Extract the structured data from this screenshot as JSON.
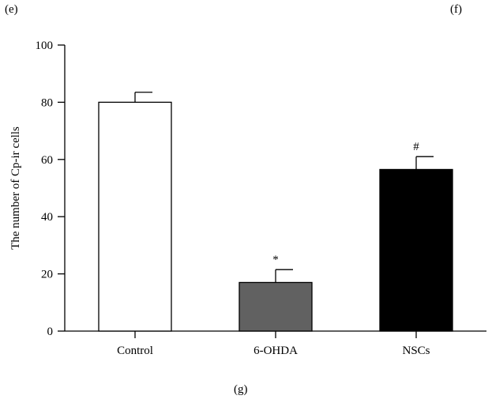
{
  "panels": {
    "left": "(e)",
    "right": "(f)",
    "caption": "(g)"
  },
  "colors": {
    "axis": "#000000",
    "bar_edge": "#000000"
  },
  "chart_data": {
    "type": "bar",
    "title": "",
    "xlabel": "",
    "ylabel": "The number of Cp-ir cells",
    "ylim": [
      0,
      100
    ],
    "yticks": [
      0,
      20,
      40,
      60,
      80,
      100
    ],
    "categories": [
      "Control",
      "6-OHDA",
      "NSCs"
    ],
    "values": [
      80,
      17,
      56.5
    ],
    "errors": [
      3.5,
      4.5,
      4.5
    ],
    "bar_colors": [
      "#ffffff",
      "#616161",
      "#000000"
    ],
    "annotations": [
      "",
      "*",
      "#"
    ],
    "grid": false
  }
}
